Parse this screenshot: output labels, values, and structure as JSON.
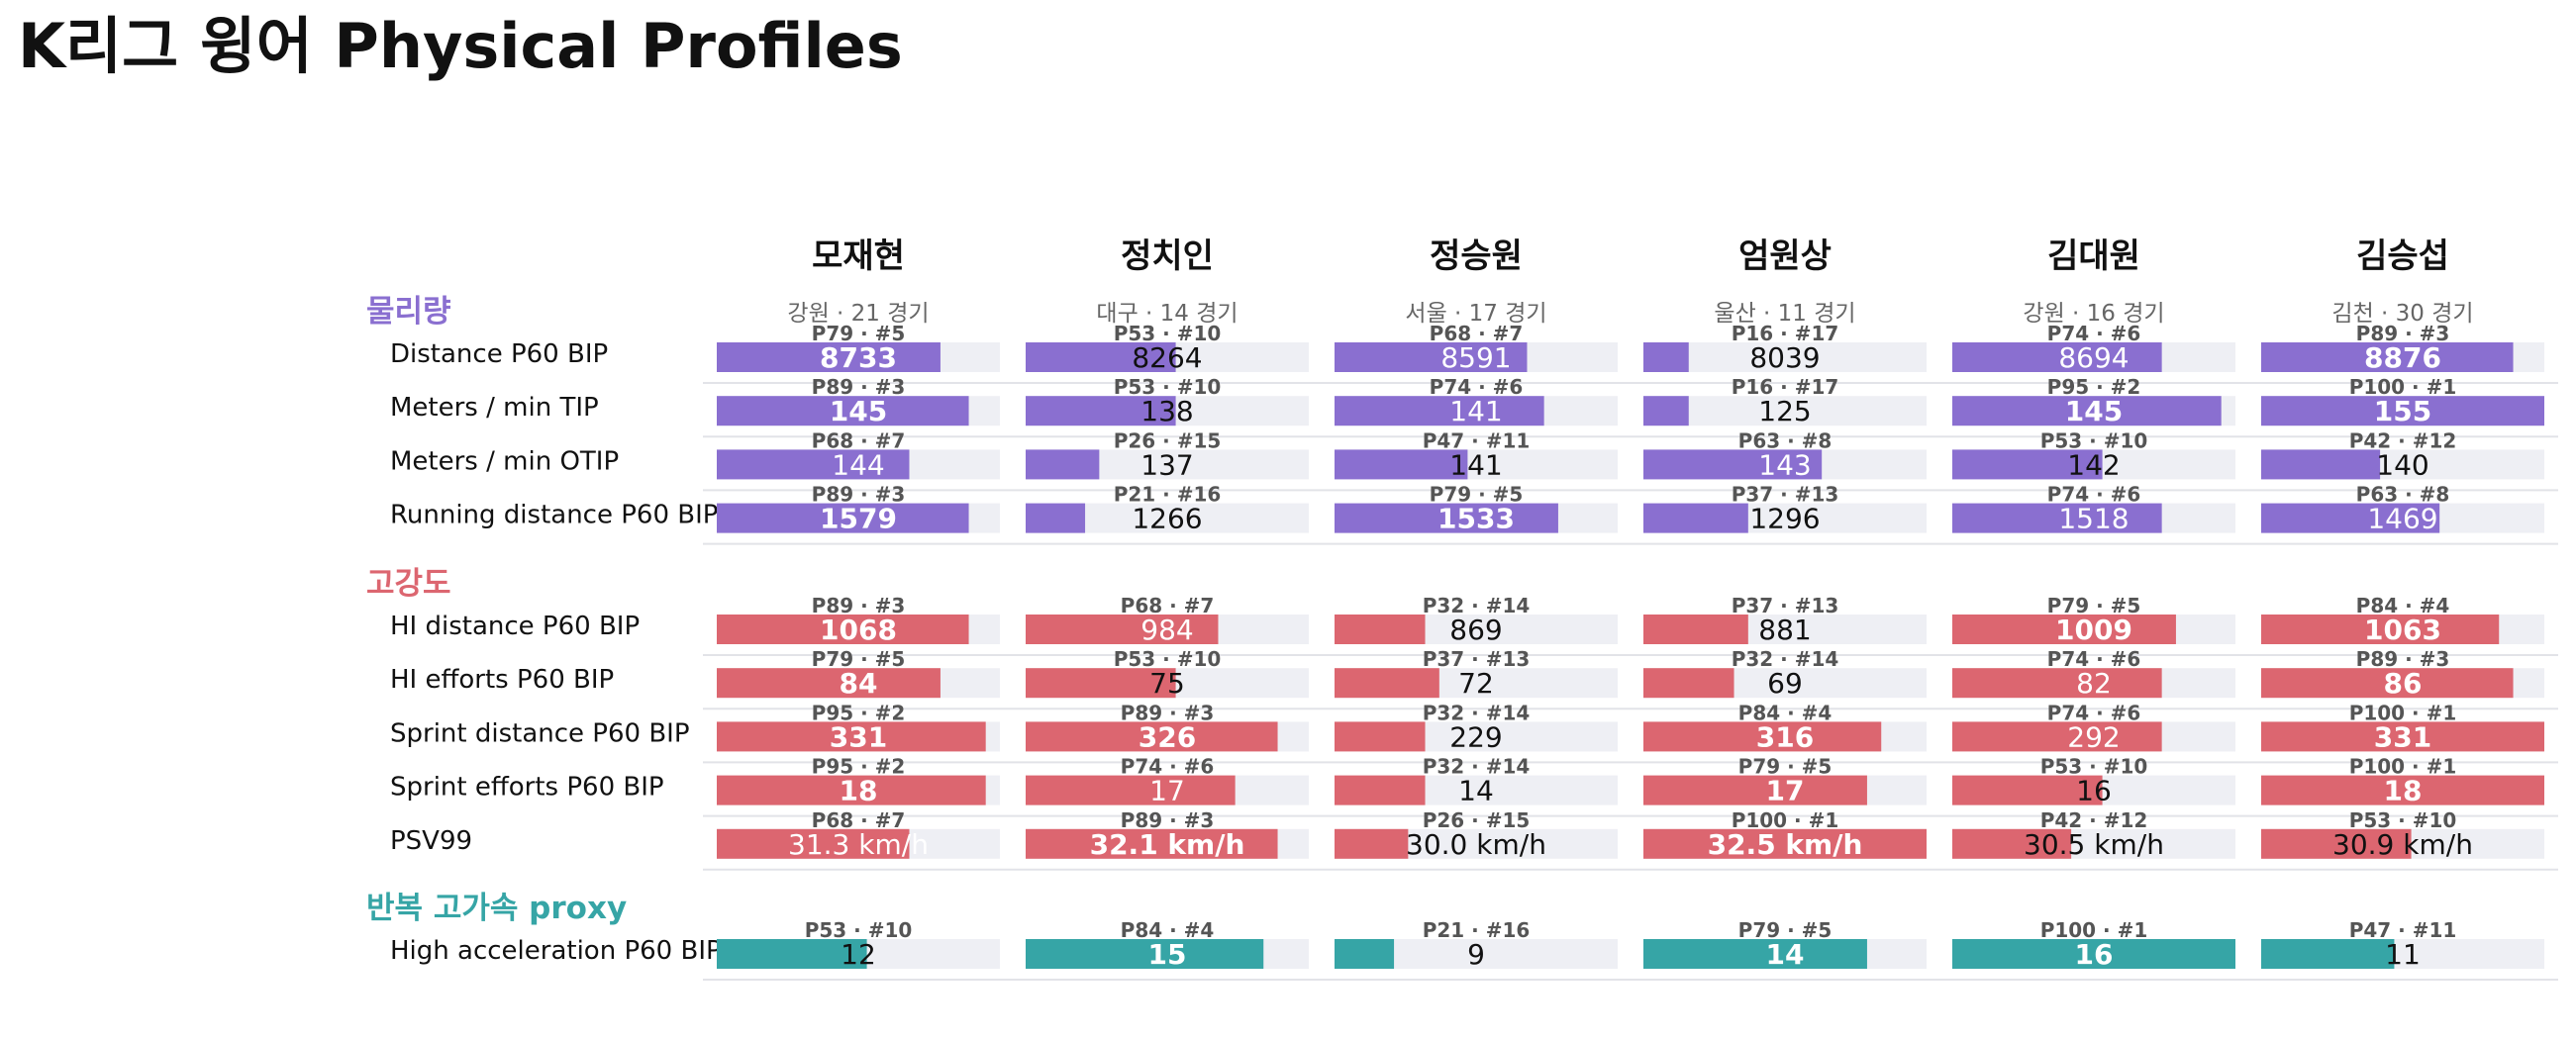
{
  "title": "K리그 윙어 Physical Profiles",
  "chart_data": {
    "type": "bar",
    "title": "K리그 윙어 Physical Profiles",
    "players": [
      {
        "name": "모재현",
        "meta": "강원 · 21 경기"
      },
      {
        "name": "정치인",
        "meta": "대구 · 14 경기"
      },
      {
        "name": "정승원",
        "meta": "서울 · 17 경기"
      },
      {
        "name": "엄원상",
        "meta": "울산 · 11 경기"
      },
      {
        "name": "김대원",
        "meta": "강원 · 16 경기"
      },
      {
        "name": "김승섭",
        "meta": "김천 · 30 경기"
      }
    ],
    "sections": [
      {
        "label": "물리량",
        "color": "#8a6fd0",
        "metrics": [
          {
            "name": "Distance P60 BIP",
            "values": [
              "8733",
              "8264",
              "8591",
              "8039",
              "8694",
              "8876"
            ],
            "percentiles": [
              79,
              53,
              68,
              16,
              74,
              89
            ],
            "ranks": [
              "P79 · #5",
              "P53 · #10",
              "P68 · #7",
              "P16 · #17",
              "P74 · #6",
              "P89 · #3"
            ]
          },
          {
            "name": "Meters / min TIP",
            "values": [
              "145",
              "138",
              "141",
              "125",
              "145",
              "155"
            ],
            "percentiles": [
              89,
              53,
              74,
              16,
              95,
              100
            ],
            "ranks": [
              "P89 · #3",
              "P53 · #10",
              "P74 · #6",
              "P16 · #17",
              "P95 · #2",
              "P100 · #1"
            ]
          },
          {
            "name": "Meters / min OTIP",
            "values": [
              "144",
              "137",
              "141",
              "143",
              "142",
              "140"
            ],
            "percentiles": [
              68,
              26,
              47,
              63,
              53,
              42
            ],
            "ranks": [
              "P68 · #7",
              "P26 · #15",
              "P47 · #11",
              "P63 · #8",
              "P53 · #10",
              "P42 · #12"
            ]
          },
          {
            "name": "Running distance P60 BIP",
            "values": [
              "1579",
              "1266",
              "1533",
              "1296",
              "1518",
              "1469"
            ],
            "percentiles": [
              89,
              21,
              79,
              37,
              74,
              63
            ],
            "ranks": [
              "P89 · #3",
              "P21 · #16",
              "P79 · #5",
              "P37 · #13",
              "P74 · #6",
              "P63 · #8"
            ]
          }
        ]
      },
      {
        "label": "고강도",
        "color": "#dc6670",
        "metrics": [
          {
            "name": "HI distance P60 BIP",
            "values": [
              "1068",
              "984",
              "869",
              "881",
              "1009",
              "1063"
            ],
            "percentiles": [
              89,
              68,
              32,
              37,
              79,
              84
            ],
            "ranks": [
              "P89 · #3",
              "P68 · #7",
              "P32 · #14",
              "P37 · #13",
              "P79 · #5",
              "P84 · #4"
            ]
          },
          {
            "name": "HI efforts P60 BIP",
            "values": [
              "84",
              "75",
              "72",
              "69",
              "82",
              "86"
            ],
            "percentiles": [
              79,
              53,
              37,
              32,
              74,
              89
            ],
            "ranks": [
              "P79 · #5",
              "P53 · #10",
              "P37 · #13",
              "P32 · #14",
              "P74 · #6",
              "P89 · #3"
            ]
          },
          {
            "name": "Sprint distance P60 BIP",
            "values": [
              "331",
              "326",
              "229",
              "316",
              "292",
              "331"
            ],
            "percentiles": [
              95,
              89,
              32,
              84,
              74,
              100
            ],
            "ranks": [
              "P95 · #2",
              "P89 · #3",
              "P32 · #14",
              "P84 · #4",
              "P74 · #6",
              "P100 · #1"
            ]
          },
          {
            "name": "Sprint efforts P60 BIP",
            "values": [
              "18",
              "17",
              "14",
              "17",
              "16",
              "18"
            ],
            "percentiles": [
              95,
              74,
              32,
              79,
              53,
              100
            ],
            "ranks": [
              "P95 · #2",
              "P74 · #6",
              "P32 · #14",
              "P79 · #5",
              "P53 · #10",
              "P100 · #1"
            ]
          },
          {
            "name": "PSV99",
            "values": [
              "31.3 km/h",
              "32.1 km/h",
              "30.0 km/h",
              "32.5 km/h",
              "30.5 km/h",
              "30.9 km/h"
            ],
            "percentiles": [
              68,
              89,
              26,
              100,
              42,
              53
            ],
            "ranks": [
              "P68 · #7",
              "P89 · #3",
              "P26 · #15",
              "P100 · #1",
              "P42 · #12",
              "P53 · #10"
            ]
          }
        ]
      },
      {
        "label": "반복 고가속 proxy",
        "color": "#36a5a6",
        "metrics": [
          {
            "name": "High acceleration P60 BIP",
            "values": [
              "12",
              "15",
              "9",
              "14",
              "16",
              "11"
            ],
            "percentiles": [
              53,
              84,
              21,
              79,
              100,
              47
            ],
            "ranks": [
              "P53 · #10",
              "P84 · #4",
              "P21 · #16",
              "P79 · #5",
              "P100 · #1",
              "P47 · #11"
            ]
          }
        ]
      }
    ]
  }
}
